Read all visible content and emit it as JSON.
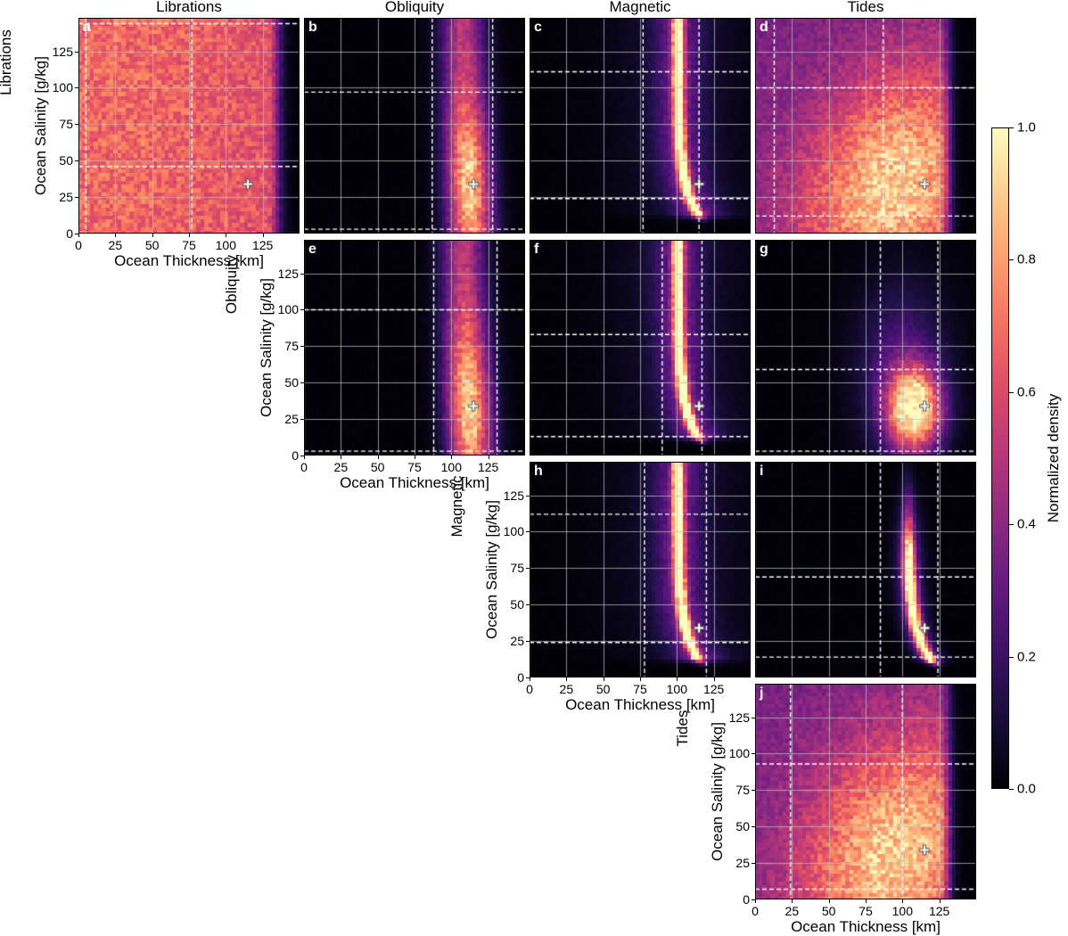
{
  "chart_data": {
    "type": "heatmap",
    "column_titles": [
      "Librations",
      "Obliquity",
      "Magnetic",
      "Tides"
    ],
    "row_labels": [
      "Librations",
      "Obliquity",
      "Magnetic",
      "Tides"
    ],
    "xlabel": "Ocean Thickness [km]",
    "ylabel": "Ocean Salinity [g/kg]",
    "xlim": [
      0,
      150
    ],
    "ylim": [
      0,
      148
    ],
    "xticks": [
      0,
      25,
      50,
      75,
      100,
      125
    ],
    "yticks": [
      0,
      25,
      50,
      75,
      100,
      125
    ],
    "colormap": "magma",
    "colorbar": {
      "label": "Normalized density",
      "range": [
        0.0,
        1.0
      ],
      "ticks": [
        "0.0",
        "0.2",
        "0.4",
        "0.6",
        "0.8",
        "1.0"
      ]
    },
    "true_value": {
      "thickness": 115,
      "salinity": 34
    },
    "panels": [
      {
        "letter": "a",
        "row": 0,
        "col": 0,
        "pattern": "broad_uniform",
        "vlines": [
          5,
          77
        ],
        "hlines": [
          46,
          144
        ]
      },
      {
        "letter": "b",
        "row": 0,
        "col": 1,
        "pattern": "vertical_band",
        "vlines": [
          87,
          128
        ],
        "hlines": [
          3,
          97
        ]
      },
      {
        "letter": "c",
        "row": 0,
        "col": 2,
        "pattern": "curved_ridge",
        "vlines": [
          77,
          115
        ],
        "hlines": [
          24,
          111
        ]
      },
      {
        "letter": "d",
        "row": 0,
        "col": 3,
        "pattern": "broad_diagonal",
        "vlines": [
          13,
          87
        ],
        "hlines": [
          12,
          100
        ]
      },
      {
        "letter": "e",
        "row": 1,
        "col": 1,
        "pattern": "vertical_band",
        "vlines": [
          88,
          131
        ],
        "hlines": [
          3,
          100
        ]
      },
      {
        "letter": "f",
        "row": 1,
        "col": 2,
        "pattern": "curved_ridge",
        "vlines": [
          90,
          117
        ],
        "hlines": [
          13,
          83
        ]
      },
      {
        "letter": "g",
        "row": 1,
        "col": 3,
        "pattern": "blob",
        "vlines": [
          85,
          124
        ],
        "hlines": [
          3,
          59
        ]
      },
      {
        "letter": "h",
        "row": 2,
        "col": 2,
        "pattern": "curved_ridge",
        "vlines": [
          78,
          120
        ],
        "hlines": [
          24,
          112
        ]
      },
      {
        "letter": "i",
        "row": 2,
        "col": 3,
        "pattern": "narrow_ridge",
        "vlines": [
          85,
          124
        ],
        "hlines": [
          14,
          69
        ]
      },
      {
        "letter": "j",
        "row": 3,
        "col": 3,
        "pattern": "broad_diagonal",
        "vlines": [
          24,
          100
        ],
        "hlines": [
          7,
          93
        ]
      }
    ]
  }
}
